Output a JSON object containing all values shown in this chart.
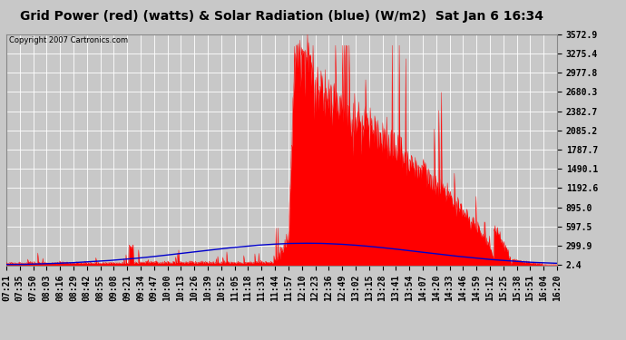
{
  "title": "Grid Power (red) (watts) & Solar Radiation (blue) (W/m2)  Sat Jan 6 16:34",
  "copyright": "Copyright 2007 Cartronics.com",
  "background_color": "#c8c8c8",
  "plot_bg_color": "#c8c8c8",
  "y_ticks": [
    2.4,
    299.9,
    597.5,
    895.0,
    1192.6,
    1490.1,
    1787.7,
    2085.2,
    2382.7,
    2680.3,
    2977.8,
    3275.4,
    3572.9
  ],
  "y_min": 0,
  "y_max": 3572.9,
  "x_labels": [
    "07:21",
    "07:35",
    "07:50",
    "08:03",
    "08:16",
    "08:29",
    "08:42",
    "08:55",
    "09:08",
    "09:21",
    "09:34",
    "09:47",
    "10:00",
    "10:13",
    "10:26",
    "10:39",
    "10:52",
    "11:05",
    "11:18",
    "11:31",
    "11:44",
    "11:57",
    "12:10",
    "12:23",
    "12:36",
    "12:49",
    "13:02",
    "13:15",
    "13:28",
    "13:41",
    "13:54",
    "14:07",
    "14:20",
    "14:33",
    "14:46",
    "14:59",
    "15:12",
    "15:25",
    "15:38",
    "15:51",
    "16:04",
    "16:20"
  ],
  "grid_color": "#ffffff",
  "line_color_blue": "#0000cc",
  "fill_color_red": "#ff0000",
  "title_fontsize": 10,
  "tick_fontsize": 7,
  "copyright_fontsize": 6
}
